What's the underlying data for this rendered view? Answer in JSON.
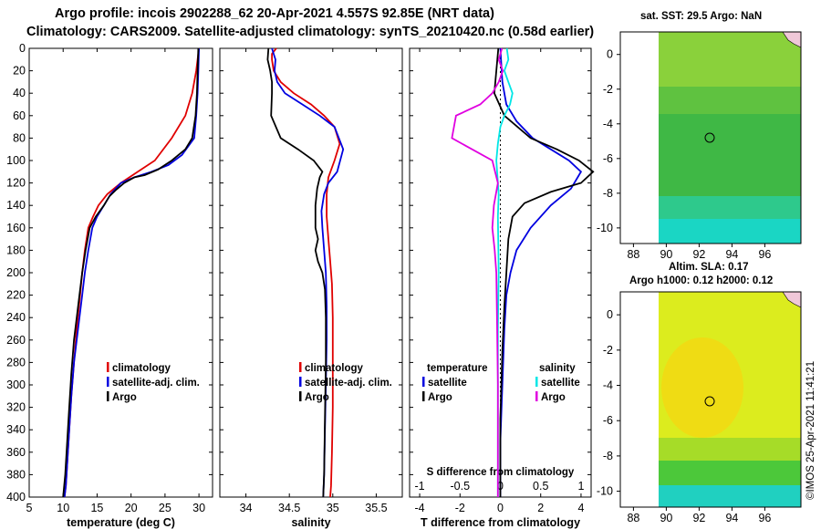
{
  "header": {
    "line1": "Argo profile: incois 2902288_62 20-Apr-2021 4.557S 92.85E (NRT data)",
    "line2": "Climatology: CARS2009. Satellite-adjusted climatology: synTS_20210420.nc (0.58d earlier)"
  },
  "colors": {
    "climatology": "#e00000",
    "satellite": "#0000e0",
    "argo": "#000000",
    "s_satellite": "#00e6e6",
    "s_argo": "#e000e0"
  },
  "chart_data": [
    {
      "type": "line",
      "title": "temperature profile",
      "xlabel": "temperature (deg C)",
      "ylabel": "depth",
      "xlim": [
        5,
        32
      ],
      "ylim": [
        400,
        0
      ],
      "xticks": [
        "5",
        "10",
        "15",
        "20",
        "25",
        "30"
      ],
      "yticks": [
        "0",
        "20",
        "40",
        "60",
        "80",
        "100",
        "120",
        "140",
        "160",
        "180",
        "200",
        "220",
        "240",
        "260",
        "280",
        "300",
        "320",
        "340",
        "360",
        "380",
        "400"
      ],
      "legend": [
        "climatology",
        "satellite-adj. clim.",
        "Argo"
      ],
      "series": [
        {
          "name": "climatology",
          "x": [
            30.0,
            29.6,
            29.0,
            28.0,
            26.0,
            23.5,
            21.0,
            18.5,
            16.5,
            15.2,
            14.4,
            13.7,
            13.2,
            12.8,
            12.5,
            12.0,
            11.6,
            11.2,
            10.9,
            10.6,
            10.4,
            10.2
          ],
          "y": [
            0,
            20,
            40,
            60,
            80,
            100,
            110,
            120,
            130,
            140,
            150,
            160,
            180,
            200,
            220,
            250,
            280,
            310,
            340,
            370,
            390,
            400
          ]
        },
        {
          "name": "satellite-adj. clim.",
          "x": [
            30.0,
            29.9,
            29.8,
            29.6,
            29.3,
            27.5,
            25.5,
            23.0,
            20.5,
            18.5,
            17.0,
            16.0,
            15.0,
            14.3,
            13.7,
            13.2,
            12.8,
            12.4,
            12.0,
            11.6,
            11.2,
            10.9,
            10.6,
            10.4,
            10.2
          ],
          "y": [
            0,
            20,
            40,
            60,
            80,
            95,
            104,
            110,
            115,
            120,
            130,
            140,
            150,
            160,
            180,
            200,
            220,
            240,
            260,
            280,
            310,
            340,
            370,
            390,
            400
          ]
        },
        {
          "name": "Argo",
          "x": [
            29.9,
            29.8,
            29.7,
            29.5,
            29.0,
            28.0,
            26.0,
            24.0,
            22.0,
            20.5,
            19.0,
            17.8,
            16.8,
            16.0,
            14.8,
            13.9,
            13.3,
            12.8,
            12.4,
            12.0,
            11.6,
            11.2,
            10.9,
            10.6,
            10.3,
            10.0
          ],
          "y": [
            0,
            20,
            40,
            60,
            80,
            90,
            100,
            108,
            113,
            115,
            120,
            126,
            132,
            140,
            150,
            160,
            180,
            200,
            220,
            240,
            260,
            290,
            320,
            350,
            380,
            400
          ]
        }
      ]
    },
    {
      "type": "line",
      "title": "salinity profile",
      "xlabel": "salinity",
      "ylabel": "depth",
      "xlim": [
        33.7,
        35.8
      ],
      "ylim": [
        400,
        0
      ],
      "xticks": [
        "34",
        "34.5",
        "35",
        "35.5"
      ],
      "legend": [
        "climatology",
        "satellite-adj. clim.",
        "Argo"
      ],
      "series": [
        {
          "name": "climatology",
          "x": [
            34.35,
            34.3,
            34.3,
            34.32,
            34.4,
            34.55,
            34.75,
            34.9,
            35.02,
            35.08,
            35.02,
            34.95,
            34.93,
            34.93,
            34.95,
            34.97,
            34.99,
            35.0,
            35.0,
            35.0,
            34.99,
            34.98,
            34.97
          ],
          "y": [
            0,
            5,
            10,
            20,
            30,
            40,
            50,
            60,
            70,
            85,
            100,
            115,
            130,
            150,
            170,
            190,
            210,
            240,
            280,
            320,
            360,
            390,
            400
          ]
        },
        {
          "name": "satellite-adj. clim.",
          "x": [
            34.3,
            34.32,
            34.34,
            34.33,
            34.36,
            34.45,
            34.65,
            34.85,
            35.02,
            35.12,
            35.05,
            34.95,
            34.9,
            34.87,
            34.88,
            34.9,
            34.92,
            34.93,
            34.93,
            34.92,
            34.91,
            34.9,
            34.89
          ],
          "y": [
            0,
            5,
            10,
            20,
            30,
            40,
            50,
            60,
            70,
            90,
            110,
            120,
            130,
            145,
            160,
            180,
            200,
            230,
            260,
            300,
            340,
            380,
            400
          ]
        },
        {
          "name": "Argo",
          "x": [
            34.26,
            34.25,
            34.28,
            34.3,
            34.3,
            34.29,
            34.4,
            34.6,
            34.78,
            34.88,
            34.85,
            34.82,
            34.8,
            34.8,
            34.83,
            34.8,
            34.83,
            34.88,
            34.91,
            34.92,
            34.92,
            34.91,
            34.9,
            34.89
          ],
          "y": [
            0,
            10,
            20,
            30,
            40,
            60,
            80,
            90,
            100,
            110,
            115,
            125,
            140,
            160,
            170,
            180,
            190,
            200,
            215,
            240,
            280,
            330,
            380,
            400
          ]
        }
      ]
    },
    {
      "type": "line",
      "title": "difference from climatology",
      "xlabel": "T difference from climatology",
      "xlabel2": "S difference from climatology",
      "xlim": [
        -4.5,
        4.5
      ],
      "x2lim": [
        -1.125,
        1.125
      ],
      "ylim": [
        400,
        0
      ],
      "xticks": [
        "-4",
        "-2",
        "0",
        "2",
        "4"
      ],
      "x2ticks": [
        "-1",
        "-0.5",
        "0",
        "0.5",
        "1"
      ],
      "legend_temperature": {
        "heading": "temperature",
        "items": [
          "satellite",
          "Argo"
        ]
      },
      "legend_salinity": {
        "heading": "salinity",
        "items": [
          "satellite",
          "Argo"
        ]
      },
      "series": [
        {
          "name": "temperature satellite",
          "x": [
            0.0,
            0.1,
            0.3,
            0.8,
            1.6,
            2.5,
            3.4,
            4.0,
            3.5,
            2.5,
            1.5,
            0.8,
            0.5,
            0.3,
            0.2,
            0.1,
            0.0,
            0.0
          ],
          "y": [
            0,
            30,
            50,
            65,
            80,
            90,
            100,
            110,
            125,
            140,
            160,
            180,
            200,
            220,
            250,
            300,
            350,
            400
          ]
        },
        {
          "name": "temperature Argo",
          "x": [
            -0.1,
            -0.2,
            -0.3,
            0.2,
            1.5,
            2.8,
            3.9,
            4.6,
            4.0,
            2.5,
            1.2,
            0.6,
            0.4,
            0.3,
            0.2,
            0.1,
            0.0,
            0.0
          ],
          "y": [
            0,
            20,
            40,
            60,
            80,
            90,
            100,
            110,
            120,
            128,
            138,
            150,
            170,
            200,
            230,
            270,
            330,
            400
          ]
        },
        {
          "name": "salinity satellite",
          "x": [
            0.08,
            0.1,
            0.05,
            0.1,
            0.15,
            0.12,
            0.05,
            0.0,
            -0.03,
            -0.05,
            -0.02,
            -0.03,
            -0.02,
            -0.03,
            -0.03,
            -0.03
          ],
          "y": [
            0,
            10,
            20,
            30,
            40,
            50,
            60,
            70,
            85,
            100,
            130,
            150,
            200,
            250,
            300,
            400
          ]
        },
        {
          "name": "salinity Argo",
          "x": [
            0.02,
            -0.02,
            0.03,
            -0.02,
            -0.1,
            -0.25,
            -0.55,
            -0.6,
            -0.35,
            -0.1,
            -0.03,
            -0.08,
            -0.1,
            -0.07,
            -0.05,
            -0.04,
            -0.03,
            -0.03
          ],
          "y": [
            0,
            10,
            20,
            30,
            40,
            50,
            60,
            80,
            90,
            100,
            120,
            140,
            160,
            180,
            200,
            250,
            300,
            400
          ]
        }
      ]
    }
  ],
  "maps": {
    "sst": {
      "title": "sat. SST: 29.5 Argo: NaN",
      "xticks": [
        "88",
        "90",
        "92",
        "94",
        "96"
      ],
      "yticks": [
        "0",
        "-2",
        "-4",
        "-6",
        "-8",
        "-10"
      ],
      "argo_lon": 92.85,
      "argo_lat": -4.557
    },
    "sla": {
      "title1": "Altim. SLA: 0.17",
      "title2": "Argo h1000: 0.12 h2000: 0.12",
      "xticks": [
        "88",
        "90",
        "92",
        "94",
        "96"
      ],
      "yticks": [
        "0",
        "-2",
        "-4",
        "-6",
        "-8",
        "-10"
      ],
      "argo_lon": 92.85,
      "argo_lat": -4.557
    }
  },
  "footer": {
    "stamp": "©IMOS 25-Apr-2021 11:41:21"
  }
}
